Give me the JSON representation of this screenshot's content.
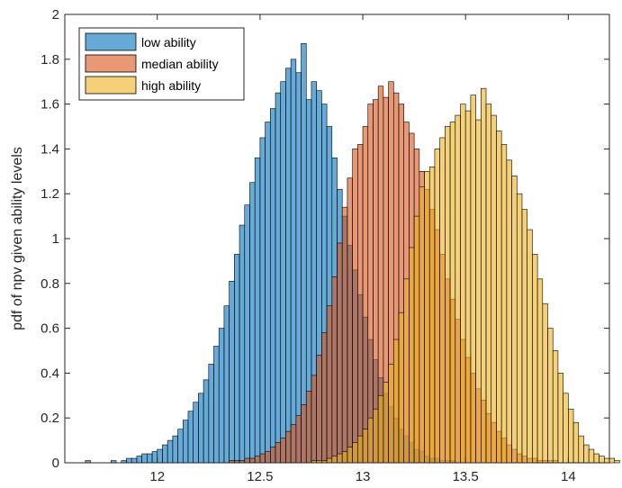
{
  "chart_data": {
    "type": "histogram",
    "title": "",
    "xlabel": "",
    "ylabel": "pdf of npv given ability levels",
    "xlim": [
      11.55,
      14.2
    ],
    "ylim": [
      0,
      2
    ],
    "xticks": [
      12,
      12.5,
      13,
      13.5,
      14
    ],
    "xtick_labels": [
      "12",
      "12.5",
      "13",
      "13.5",
      "14"
    ],
    "yticks": [
      0,
      0.2,
      0.4,
      0.6,
      0.8,
      1,
      1.2,
      1.4,
      1.6,
      1.8,
      2
    ],
    "ytick_labels": [
      "0",
      "0.2",
      "0.4",
      "0.6",
      "0.8",
      "1",
      "1.2",
      "1.4",
      "1.6",
      "1.8",
      "2"
    ],
    "grid": false,
    "legend_position": "top-left",
    "bin_width": 0.025,
    "series": [
      {
        "name": "low ability",
        "color": "#0072BD",
        "bin_start": 11.65,
        "values": [
          0.01,
          0,
          0,
          0,
          0,
          0.01,
          0,
          0.01,
          0.02,
          0.02,
          0.03,
          0.04,
          0.04,
          0.05,
          0.06,
          0.08,
          0.1,
          0.12,
          0.15,
          0.19,
          0.23,
          0.27,
          0.31,
          0.37,
          0.44,
          0.52,
          0.6,
          0.7,
          0.81,
          0.93,
          1.06,
          1.15,
          1.25,
          1.36,
          1.45,
          1.52,
          1.58,
          1.65,
          1.7,
          1.76,
          1.8,
          1.74,
          1.87,
          1.62,
          1.7,
          1.66,
          1.6,
          1.5,
          1.36,
          1.22,
          1.1,
          0.97,
          0.86,
          0.75,
          0.65,
          0.55,
          0.46,
          0.38,
          0.31,
          0.25,
          0.2,
          0.15,
          0.12,
          0.09,
          0.06,
          0.05,
          0.03,
          0.02,
          0.02,
          0.01,
          0.01,
          0.01
        ]
      },
      {
        "name": "median ability",
        "color": "#D95319",
        "bin_start": 12.35,
        "values": [
          0.01,
          0.01,
          0.01,
          0.02,
          0.02,
          0.03,
          0.04,
          0.05,
          0.07,
          0.09,
          0.11,
          0.14,
          0.17,
          0.21,
          0.26,
          0.32,
          0.39,
          0.48,
          0.58,
          0.7,
          0.83,
          0.98,
          1.14,
          1.27,
          1.4,
          1.42,
          1.5,
          1.6,
          1.62,
          1.68,
          1.63,
          1.7,
          1.65,
          1.6,
          1.52,
          1.47,
          1.4,
          1.3,
          1.22,
          1.13,
          1.04,
          0.93,
          0.82,
          0.73,
          0.64,
          0.55,
          0.47,
          0.4,
          0.33,
          0.28,
          0.22,
          0.18,
          0.14,
          0.11,
          0.08,
          0.06,
          0.04,
          0.03,
          0.02,
          0.02,
          0.01,
          0.01,
          0.01,
          0.01
        ]
      },
      {
        "name": "high ability",
        "color": "#EDB120",
        "bin_start": 12.75,
        "values": [
          0.01,
          0.01,
          0.01,
          0.02,
          0.03,
          0.04,
          0.05,
          0.07,
          0.09,
          0.12,
          0.15,
          0.2,
          0.24,
          0.3,
          0.36,
          0.44,
          0.55,
          0.67,
          0.82,
          0.96,
          1.1,
          1.23,
          1.3,
          1.32,
          1.4,
          1.45,
          1.5,
          1.52,
          1.55,
          1.6,
          1.57,
          1.64,
          1.53,
          1.67,
          1.6,
          1.55,
          1.48,
          1.42,
          1.35,
          1.28,
          1.2,
          1.13,
          1.04,
          0.93,
          0.82,
          0.71,
          0.6,
          0.5,
          0.4,
          0.31,
          0.24,
          0.18,
          0.12,
          0.08,
          0.06,
          0.04,
          0.03,
          0.02,
          0.02,
          0.01
        ]
      }
    ]
  }
}
